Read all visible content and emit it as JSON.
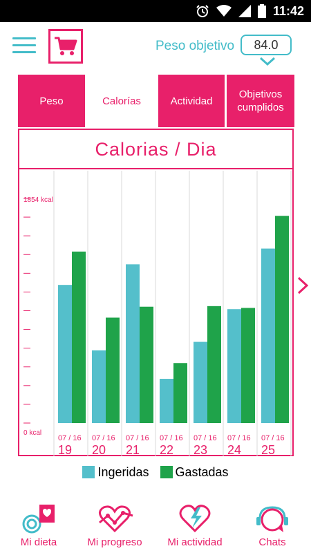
{
  "status_bar": {
    "time": "11:42"
  },
  "header": {
    "menu_icon": "hamburger-menu-icon",
    "cart_icon": "shopping-cart-icon",
    "target_weight_label": "Peso objetivo",
    "target_weight_value": "84.0"
  },
  "tabs": [
    {
      "label": "Peso",
      "active": false
    },
    {
      "label": "Calorías",
      "active": true
    },
    {
      "label": "Actividad",
      "active": false
    },
    {
      "label": "Objetivos cumplidos",
      "active": false
    }
  ],
  "chart_title": "Calorias / Dia",
  "chart_data": {
    "type": "bar",
    "title": "Calorias / Dia",
    "y_top_label": "1854 kcal",
    "y_bottom_label": "0 kcal",
    "ylim": [
      0,
      1854
    ],
    "categories": [
      {
        "month": "07 / 16",
        "day": "19"
      },
      {
        "month": "07 / 16",
        "day": "20"
      },
      {
        "month": "07 / 16",
        "day": "21"
      },
      {
        "month": "07 / 16",
        "day": "22"
      },
      {
        "month": "07 / 16",
        "day": "23"
      },
      {
        "month": "07 / 16",
        "day": "24"
      },
      {
        "month": "07 / 16",
        "day": "25"
      }
    ],
    "series": [
      {
        "name": "Ingeridas",
        "color": "#54bfcb",
        "values": [
          1140,
          600,
          1310,
          365,
          670,
          940,
          1440
        ]
      },
      {
        "name": "Gastadas",
        "color": "#1fa34a",
        "values": [
          1415,
          870,
          960,
          495,
          965,
          950,
          1710
        ]
      }
    ]
  },
  "legend": [
    {
      "name": "Ingeridas",
      "color": "#54bfcb"
    },
    {
      "name": "Gastadas",
      "color": "#1fa34a"
    }
  ],
  "colors": {
    "accent": "#e8206a",
    "teal": "#43bcc9"
  },
  "bottom_nav": [
    {
      "label": "Mi dieta",
      "icon": "diet-icon"
    },
    {
      "label": "Mi progreso",
      "icon": "progress-icon"
    },
    {
      "label": "Mi actividad",
      "icon": "activity-icon"
    },
    {
      "label": "Chats",
      "icon": "chat-icon"
    }
  ]
}
